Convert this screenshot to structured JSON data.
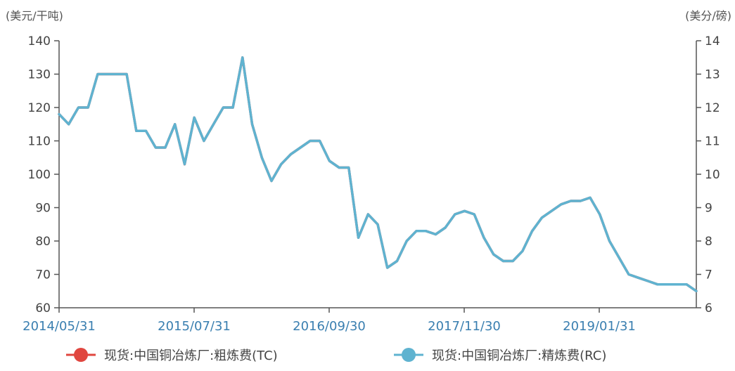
{
  "chart_data": {
    "type": "line",
    "left_unit": "(美元/干吨)",
    "right_unit": "(美分/磅)",
    "y_left": {
      "min": 60,
      "max": 140,
      "ticks": [
        60,
        70,
        80,
        90,
        100,
        110,
        120,
        130,
        140
      ]
    },
    "y_right": {
      "min": 6,
      "max": 14,
      "ticks": [
        6,
        7,
        8,
        9,
        10,
        11,
        12,
        13,
        14
      ]
    },
    "x_ticks": [
      "2014/05/31",
      "2015/07/31",
      "2016/09/30",
      "2017/11/30",
      "2019/01/31"
    ],
    "x_range": {
      "start": 0,
      "end": 66
    },
    "grid": false,
    "legend_position": "bottom",
    "series": [
      {
        "name": "现货:中国铜冶炼厂:粗炼费(TC)",
        "color": "#e0463f",
        "axis": "left",
        "x": [
          0,
          1,
          2,
          3,
          4,
          5,
          6,
          7,
          8,
          9,
          10,
          11,
          12,
          13,
          14,
          15,
          16,
          17,
          18,
          19,
          20,
          21,
          22,
          23,
          24,
          25,
          26,
          27,
          28,
          29,
          30,
          31,
          32,
          33,
          34,
          35,
          36,
          37,
          38,
          39,
          40,
          41,
          42,
          43,
          44,
          45,
          46,
          47,
          48,
          49,
          50,
          51,
          52,
          53,
          54,
          55,
          56,
          57,
          58,
          59,
          60,
          61,
          62,
          63,
          64,
          65,
          66
        ],
        "values": [
          118,
          115,
          120,
          120,
          130,
          130,
          130,
          130,
          113,
          113,
          108,
          108,
          115,
          103,
          117,
          110,
          115,
          120,
          120,
          135,
          115,
          105,
          98,
          103,
          106,
          108,
          110,
          110,
          104,
          102,
          102,
          81,
          88,
          85,
          72,
          74,
          80,
          83,
          83,
          82,
          84,
          88,
          89,
          88,
          81,
          76,
          74,
          74,
          77,
          83,
          87,
          89,
          91,
          92,
          92,
          93,
          88,
          80,
          75,
          70,
          69,
          68,
          67,
          67,
          67,
          67,
          65
        ]
      },
      {
        "name": "现货:中国铜冶炼厂:精炼费(RC)",
        "color": "#5fb3d0",
        "axis": "right",
        "x": [
          0,
          1,
          2,
          3,
          4,
          5,
          6,
          7,
          8,
          9,
          10,
          11,
          12,
          13,
          14,
          15,
          16,
          17,
          18,
          19,
          20,
          21,
          22,
          23,
          24,
          25,
          26,
          27,
          28,
          29,
          30,
          31,
          32,
          33,
          34,
          35,
          36,
          37,
          38,
          39,
          40,
          41,
          42,
          43,
          44,
          45,
          46,
          47,
          48,
          49,
          50,
          51,
          52,
          53,
          54,
          55,
          56,
          57,
          58,
          59,
          60,
          61,
          62,
          63,
          64,
          65,
          66
        ],
        "values": [
          11.8,
          11.5,
          12.0,
          12.0,
          13.0,
          13.0,
          13.0,
          13.0,
          11.3,
          11.3,
          10.8,
          10.8,
          11.5,
          10.3,
          11.7,
          11.0,
          11.5,
          12.0,
          12.0,
          13.5,
          11.5,
          10.5,
          9.8,
          10.3,
          10.6,
          10.8,
          11.0,
          11.0,
          10.4,
          10.2,
          10.2,
          8.1,
          8.8,
          8.5,
          7.2,
          7.4,
          8.0,
          8.3,
          8.3,
          8.2,
          8.4,
          8.8,
          8.9,
          8.8,
          8.1,
          7.6,
          7.4,
          7.4,
          7.7,
          8.3,
          8.7,
          8.9,
          9.1,
          9.2,
          9.2,
          9.3,
          8.8,
          8.0,
          7.5,
          7.0,
          6.9,
          6.8,
          6.7,
          6.7,
          6.7,
          6.7,
          6.5
        ]
      }
    ]
  }
}
